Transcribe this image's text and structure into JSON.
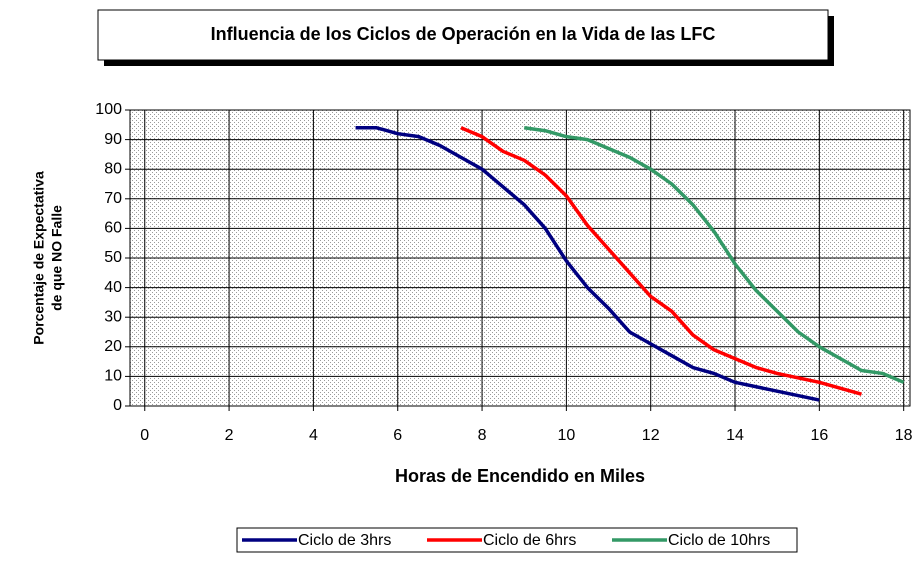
{
  "chart_data": {
    "type": "line",
    "title": "Influencia de los Ciclos de Operación en la Vida de las LFC",
    "y_label": [
      "Porcentaje de Expectativa",
      "de que NO Falle"
    ],
    "x_label": "Horas de Encendido en Miles",
    "xlim": [
      -0.35,
      18.15
    ],
    "xticks": [
      0,
      2,
      4,
      6,
      8,
      10,
      12,
      14,
      16,
      18
    ],
    "ylim": [
      0,
      100
    ],
    "yticks": [
      0,
      10,
      20,
      30,
      40,
      50,
      60,
      70,
      80,
      90,
      100
    ],
    "grid": true,
    "legend": "bottom",
    "series": [
      {
        "name": "Ciclo de 3hrs",
        "color": "#000080",
        "x": [
          5.0,
          5.5,
          6,
          6.5,
          7,
          7.5,
          8,
          8.5,
          9,
          9.5,
          10,
          10.5,
          11,
          11.5,
          12,
          12.5,
          13,
          13.5,
          14,
          15,
          16
        ],
        "values": [
          94,
          94,
          92,
          91,
          88,
          84,
          80,
          74,
          68,
          60,
          49,
          40,
          33,
          25,
          21,
          17,
          13,
          11,
          8,
          5,
          2
        ]
      },
      {
        "name": "Ciclo de 6hrs",
        "color": "#ff0000",
        "x": [
          7.5,
          8,
          8.5,
          9,
          9.5,
          10,
          10.5,
          11,
          11.5,
          12,
          12.5,
          13,
          13.5,
          14,
          14.5,
          15,
          16,
          17
        ],
        "values": [
          94,
          91,
          86,
          83,
          78,
          71,
          61,
          53,
          45,
          37,
          32,
          24,
          19,
          16,
          13,
          11,
          8,
          4
        ]
      },
      {
        "name": "Ciclo de 10hrs",
        "color": "#339966",
        "x": [
          9,
          9.5,
          10,
          10.5,
          11,
          11.5,
          12,
          12.5,
          13,
          13.5,
          14,
          14.5,
          15,
          15.5,
          16,
          16.5,
          17,
          17.5,
          18
        ],
        "values": [
          94,
          93,
          91,
          90,
          87,
          84,
          80,
          75,
          68,
          59,
          48,
          39,
          32,
          25,
          20,
          16,
          12,
          11,
          8
        ]
      }
    ]
  }
}
